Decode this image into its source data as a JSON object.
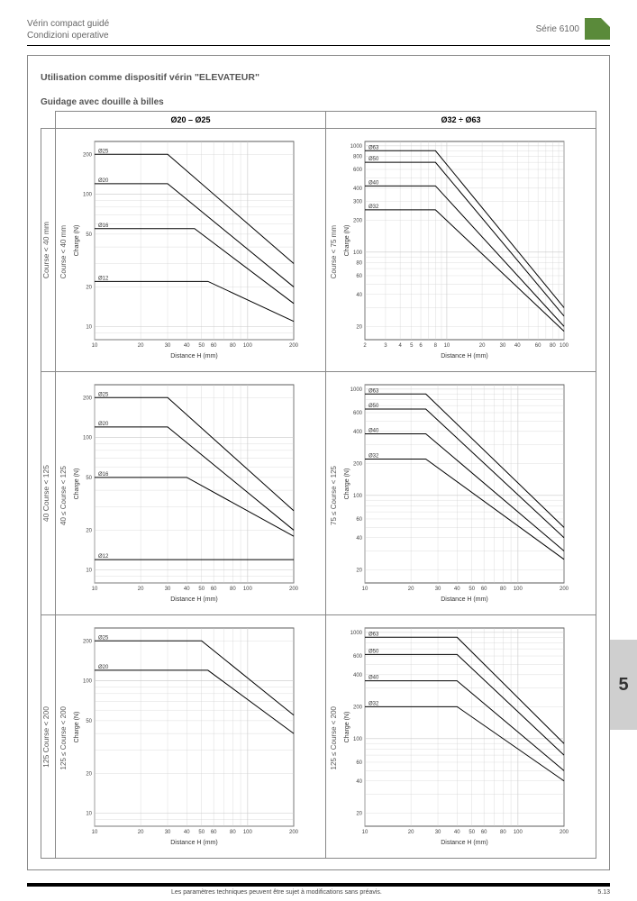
{
  "header": {
    "title_line1": "Vérin compact guidé",
    "title_line2": "Condizioni operative",
    "series": "Série 6100"
  },
  "section": {
    "title": "Utilisation comme dispositif vérin \"ELEVATEUR\"",
    "subtitle": "Guidage avec douille à billes"
  },
  "columns": [
    {
      "header": "Ø20  –  Ø25"
    },
    {
      "header": "Ø32  ÷  Ø63"
    }
  ],
  "rows": [
    {
      "row_label": "Course < 40 mm",
      "left_stroke": "Course < 40 mm",
      "right_stroke": "Course < 75 mm"
    },
    {
      "row_label": "40  Course < 125",
      "left_stroke": "40 ≤ Course < 125",
      "right_stroke": "75 ≤ Course < 125"
    },
    {
      "row_label": "125  Course < 200",
      "left_stroke": "125 ≤ Course < 200",
      "right_stroke": "125 ≤ Course < 200"
    }
  ],
  "chart_style": {
    "background_color": "#ffffff",
    "grid_color": "#c8c8c8",
    "axis_color": "#333333",
    "line_color": "#000000",
    "line_width": 1,
    "font_size_tick": 6,
    "font_size_axis": 7,
    "xlabel": "Distance H (mm)",
    "ylabel": "Charge (N)"
  },
  "charts": [
    [
      {
        "xticks": [
          10,
          20,
          30,
          40,
          50,
          60,
          80,
          100,
          200
        ],
        "yticks": [
          10,
          20,
          50,
          100,
          200
        ],
        "ylim": [
          8,
          250
        ],
        "series": [
          {
            "label": "Ø25",
            "break_x": 30,
            "y0": 200,
            "y_end": 30
          },
          {
            "label": "Ø20",
            "break_x": 30,
            "y0": 120,
            "y_end": 20
          },
          {
            "label": "Ø16",
            "break_x": 45,
            "y0": 55,
            "y_end": 15
          },
          {
            "label": "Ø12",
            "break_x": 55,
            "y0": 22,
            "y_end": 11
          }
        ]
      },
      {
        "xticks": [
          2,
          3,
          4,
          5,
          6,
          8,
          10,
          20,
          30,
          40,
          60,
          80,
          100
        ],
        "yticks": [
          20,
          40,
          60,
          80,
          100,
          200,
          300,
          400,
          600,
          800,
          1000
        ],
        "ylim": [
          15,
          1100
        ],
        "series": [
          {
            "label": "Ø63",
            "break_x": 8,
            "y0": 900,
            "y_end": 30
          },
          {
            "label": "Ø50",
            "break_x": 8,
            "y0": 700,
            "y_end": 25
          },
          {
            "label": "Ø40",
            "break_x": 8,
            "y0": 420,
            "y_end": 20
          },
          {
            "label": "Ø32",
            "break_x": 8,
            "y0": 250,
            "y_end": 18
          }
        ]
      }
    ],
    [
      {
        "xticks": [
          10,
          20,
          30,
          40,
          50,
          60,
          80,
          100,
          200
        ],
        "yticks": [
          10,
          20,
          50,
          100,
          200
        ],
        "ylim": [
          8,
          250
        ],
        "series": [
          {
            "label": "Ø25",
            "break_x": 30,
            "y0": 200,
            "y_end": 28
          },
          {
            "label": "Ø20",
            "break_x": 30,
            "y0": 120,
            "y_end": 20
          },
          {
            "label": "Ø16",
            "break_x": 40,
            "y0": 50,
            "y_end": 18
          },
          {
            "label": "Ø12",
            "break_x": 10,
            "y0": 12,
            "y_end": 12
          }
        ]
      },
      {
        "xticks": [
          10,
          20,
          30,
          40,
          50,
          60,
          80,
          100,
          200
        ],
        "yticks": [
          20,
          40,
          60,
          100,
          200,
          400,
          600,
          1000
        ],
        "ylim": [
          15,
          1100
        ],
        "series": [
          {
            "label": "Ø63",
            "break_x": 25,
            "y0": 900,
            "y_end": 50
          },
          {
            "label": "Ø50",
            "break_x": 25,
            "y0": 650,
            "y_end": 40
          },
          {
            "label": "Ø40",
            "break_x": 25,
            "y0": 380,
            "y_end": 30
          },
          {
            "label": "Ø32",
            "break_x": 25,
            "y0": 220,
            "y_end": 25
          }
        ]
      }
    ],
    [
      {
        "xticks": [
          10,
          20,
          30,
          40,
          50,
          60,
          80,
          100,
          200
        ],
        "yticks": [
          10,
          20,
          50,
          100,
          200
        ],
        "ylim": [
          8,
          250
        ],
        "series": [
          {
            "label": "Ø25",
            "break_x": 50,
            "y0": 200,
            "y_end": 55
          },
          {
            "label": "Ø20",
            "break_x": 55,
            "y0": 120,
            "y_end": 40
          }
        ]
      },
      {
        "xticks": [
          10,
          20,
          30,
          40,
          50,
          60,
          80,
          100,
          200
        ],
        "yticks": [
          20,
          40,
          60,
          100,
          200,
          400,
          600,
          1000
        ],
        "ylim": [
          15,
          1100
        ],
        "series": [
          {
            "label": "Ø63",
            "break_x": 40,
            "y0": 900,
            "y_end": 90
          },
          {
            "label": "Ø50",
            "break_x": 40,
            "y0": 620,
            "y_end": 70
          },
          {
            "label": "Ø40",
            "break_x": 40,
            "y0": 350,
            "y_end": 50
          },
          {
            "label": "Ø32",
            "break_x": 40,
            "y0": 200,
            "y_end": 40
          }
        ]
      }
    ]
  ],
  "tab": {
    "number": "5"
  },
  "footer": {
    "disclaimer": "Les paramètres techniques peuvent être sujet à modifications sans préavis.",
    "page": "5.13"
  }
}
